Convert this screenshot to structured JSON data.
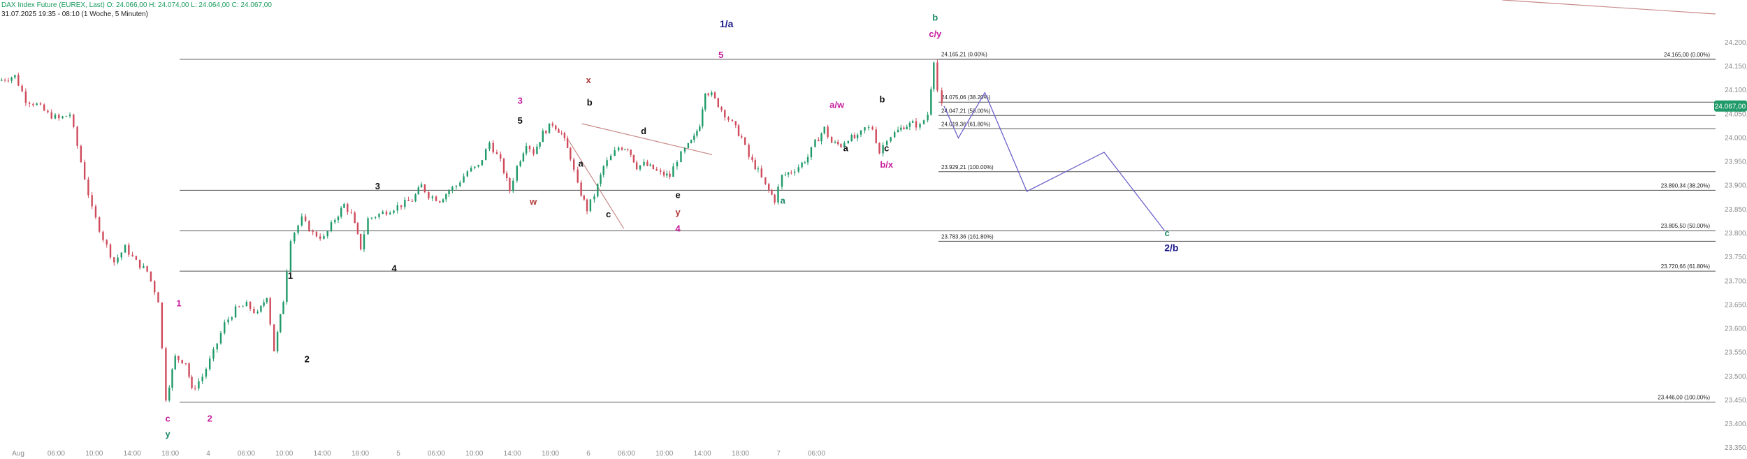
{
  "header": {
    "line1": "DAX Index Future (EUREX, Last)  O: 24.066,00  H: 24.074,00  L: 24.064,00  C: 24.067,00",
    "line2": "31.07.2025 19:35 - 08:10  (1 Woche, 5 Minuten)"
  },
  "colors": {
    "up": "#1f9a68",
    "down": "#cf4b5c",
    "level_line": "#555555",
    "trend": "#c98b8b",
    "projection": "#6c62c8",
    "price_badge": "#1f9a68"
  },
  "chart_data": {
    "type": "candlestick",
    "title": "",
    "ylim": [
      23340,
      24260
    ],
    "y_ticks": [
      "24.200,00",
      "24.150,00",
      "24.100,00",
      "24.050,00",
      "24.000,00",
      "23.950,00",
      "23.900,00",
      "23.850,00",
      "23.800,00",
      "23.750,00",
      "23.700,00",
      "23.650,00",
      "23.600,00",
      "23.550,00",
      "23.500,00",
      "23.450,00",
      "23.400,00",
      "23.350,00"
    ],
    "x_ticks": [
      "Aug",
      "06:00",
      "10:00",
      "14:00",
      "18:00",
      "4",
      "06:00",
      "10:00",
      "14:00",
      "18:00",
      "5",
      "06:00",
      "10:00",
      "14:00",
      "18:00",
      "6",
      "06:00",
      "10:00",
      "14:00",
      "18:00",
      "7",
      "06:00"
    ],
    "current_price": "24.067,00",
    "price_path": [
      [
        0,
        24120
      ],
      [
        1.5,
        24130
      ],
      [
        2.5,
        24080
      ],
      [
        3.5,
        24070
      ],
      [
        4.5,
        24050
      ],
      [
        5.5,
        24040
      ],
      [
        6.5,
        24050
      ],
      [
        7.5,
        23950
      ],
      [
        8.5,
        23850
      ],
      [
        9.5,
        23790
      ],
      [
        10.5,
        23740
      ],
      [
        11.5,
        23770
      ],
      [
        12.5,
        23740
      ],
      [
        13.5,
        23720
      ],
      [
        14.5,
        23660
      ],
      [
        15.2,
        23455
      ],
      [
        16,
        23540
      ],
      [
        17,
        23530
      ],
      [
        17.5,
        23470
      ],
      [
        18.5,
        23500
      ],
      [
        19.5,
        23550
      ],
      [
        20.5,
        23610
      ],
      [
        21.5,
        23640
      ],
      [
        22.5,
        23650
      ],
      [
        23.5,
        23630
      ],
      [
        24.3,
        23670
      ],
      [
        25,
        23555
      ],
      [
        25.8,
        23660
      ],
      [
        26.5,
        23790
      ],
      [
        27.5,
        23830
      ],
      [
        28.5,
        23800
      ],
      [
        29.5,
        23790
      ],
      [
        30.5,
        23830
      ],
      [
        31.3,
        23860
      ],
      [
        32,
        23840
      ],
      [
        32.8,
        23770
      ],
      [
        33.5,
        23830
      ],
      [
        34.5,
        23840
      ],
      [
        35.5,
        23850
      ],
      [
        36.5,
        23860
      ],
      [
        37.5,
        23870
      ],
      [
        38.3,
        23900
      ],
      [
        39,
        23880
      ],
      [
        40,
        23870
      ],
      [
        40.8,
        23890
      ],
      [
        41.5,
        23900
      ],
      [
        42.5,
        23930
      ],
      [
        43.5,
        23940
      ],
      [
        44.5,
        23990
      ],
      [
        45.5,
        23950
      ],
      [
        46.3,
        23890
      ],
      [
        47,
        23940
      ],
      [
        47.8,
        23990
      ],
      [
        48.5,
        23970
      ],
      [
        49.3,
        24010
      ],
      [
        50.2,
        24030
      ],
      [
        51,
        24010
      ],
      [
        51.8,
        23960
      ],
      [
        52.5,
        23900
      ],
      [
        53.3,
        23850
      ],
      [
        54,
        23880
      ],
      [
        54.8,
        23940
      ],
      [
        55.5,
        23960
      ],
      [
        56.2,
        23980
      ],
      [
        57,
        23980
      ],
      [
        57.8,
        23940
      ],
      [
        58.5,
        23945
      ],
      [
        59.3,
        23935
      ],
      [
        60,
        23925
      ],
      [
        60.8,
        23920
      ],
      [
        61.5,
        23955
      ],
      [
        62.2,
        23975
      ],
      [
        63,
        24000
      ],
      [
        63.5,
        24030
      ],
      [
        64,
        24100
      ],
      [
        64.6,
        24090
      ],
      [
        65.2,
        24070
      ],
      [
        65.8,
        24050
      ],
      [
        66.5,
        24030
      ],
      [
        67.3,
        24000
      ],
      [
        68,
        23960
      ],
      [
        68.8,
        23930
      ],
      [
        69.5,
        23900
      ],
      [
        70.3,
        23870
      ],
      [
        71,
        23920
      ],
      [
        71.8,
        23930
      ],
      [
        72.5,
        23940
      ],
      [
        73.3,
        23960
      ],
      [
        74,
        23990
      ],
      [
        74.8,
        24020
      ],
      [
        75.5,
        23990
      ],
      [
        76.3,
        23985
      ],
      [
        77,
        24000
      ],
      [
        77.8,
        24000
      ],
      [
        78.5,
        24020
      ],
      [
        79.2,
        24020
      ],
      [
        79.8,
        23970
      ],
      [
        80.5,
        24000
      ],
      [
        81.2,
        24010
      ],
      [
        82,
        24025
      ],
      [
        82.8,
        24030
      ],
      [
        83.5,
        24025
      ],
      [
        84.2,
        24050
      ],
      [
        84.7,
        24165
      ],
      [
        85.1,
        24100
      ],
      [
        85.5,
        24067
      ]
    ],
    "levels": [
      {
        "price": 24165.0,
        "label": "24.165,00 (0.00%)",
        "x0": 15.2,
        "x1": 120,
        "side": "right"
      },
      {
        "price": 23890.34,
        "label": "23.890,34 (38.20%)",
        "x0": 15.2,
        "x1": 120,
        "side": "right"
      },
      {
        "price": 23805.5,
        "label": "23.805,50 (50.00%)",
        "x0": 15.2,
        "x1": 120,
        "side": "right"
      },
      {
        "price": 23720.66,
        "label": "23.720,66 (61.80%)",
        "x0": 15.2,
        "x1": 120,
        "side": "right"
      },
      {
        "price": 23446.0,
        "label": "23.446,00 (100.00%)",
        "x0": 15.2,
        "x1": 120,
        "side": "right"
      },
      {
        "price": 24165.21,
        "label": "24.165,21 (0.00%)",
        "x0": 85,
        "x1": 120,
        "side": "left"
      },
      {
        "price": 24075.06,
        "label": "24.075,06 (38.20%)",
        "x0": 85,
        "x1": 120,
        "side": "left"
      },
      {
        "price": 24047.21,
        "label": "24.047,21 (50.00%)",
        "x0": 85,
        "x1": 120,
        "side": "left"
      },
      {
        "price": 24019.36,
        "label": "24.019,36 (61.80%)",
        "x0": 85,
        "x1": 120,
        "side": "left"
      },
      {
        "price": 23929.21,
        "label": "23.929,21 (100.00%)",
        "x0": 85,
        "x1": 120,
        "side": "left"
      },
      {
        "price": 23783.36,
        "label": "23.783,36 (161.80%)",
        "x0": 85,
        "x1": 120,
        "side": "left"
      }
    ],
    "trendlines": [
      {
        "from": [
          52.7,
          24030
        ],
        "to": [
          64.5,
          23965
        ]
      },
      {
        "from": [
          51.5,
          23995
        ],
        "to": [
          56.5,
          23810
        ]
      }
    ],
    "projection": [
      [
        85.5,
        24067
      ],
      [
        86.8,
        24000
      ],
      [
        89.2,
        24095
      ],
      [
        93,
        23888
      ],
      [
        100,
        23970
      ],
      [
        105.5,
        23805
      ]
    ],
    "wave_labels": [
      {
        "text": "1/a",
        "x": 65.8,
        "price": 24232,
        "color": "#1d1b8c",
        "size": 14
      },
      {
        "text": "5",
        "x": 65.3,
        "price": 24168,
        "color": "#c81e9c",
        "size": 13
      },
      {
        "text": "b",
        "x": 84.7,
        "price": 24246,
        "color": "#1e8a6a",
        "size": 13
      },
      {
        "text": "c/y",
        "x": 84.7,
        "price": 24212,
        "color": "#c81e9c",
        "size": 13
      },
      {
        "text": "x",
        "x": 53.3,
        "price": 24115,
        "color": "#b23a3a",
        "size": 13
      },
      {
        "text": "3",
        "x": 47.1,
        "price": 24072,
        "color": "#c81e9c",
        "size": 13
      },
      {
        "text": "b",
        "x": 53.4,
        "price": 24068,
        "color": "#111111",
        "size": 13
      },
      {
        "text": "5",
        "x": 47.1,
        "price": 24030,
        "color": "#111111",
        "size": 13
      },
      {
        "text": "d",
        "x": 58.3,
        "price": 24008,
        "color": "#111111",
        "size": 13
      },
      {
        "text": "a/w",
        "x": 75.8,
        "price": 24063,
        "color": "#c81e9c",
        "size": 13
      },
      {
        "text": "b",
        "x": 79.9,
        "price": 24075,
        "color": "#111111",
        "size": 13
      },
      {
        "text": "a",
        "x": 76.6,
        "price": 23972,
        "color": "#111111",
        "size": 13
      },
      {
        "text": "c",
        "x": 80.3,
        "price": 23972,
        "color": "#111111",
        "size": 13
      },
      {
        "text": "b/x",
        "x": 80.3,
        "price": 23938,
        "color": "#c81e9c",
        "size": 13
      },
      {
        "text": "a",
        "x": 52.6,
        "price": 23940,
        "color": "#111111",
        "size": 13
      },
      {
        "text": "3",
        "x": 34.2,
        "price": 23892,
        "color": "#111111",
        "size": 13
      },
      {
        "text": "w",
        "x": 48.3,
        "price": 23860,
        "color": "#b23a3a",
        "size": 13
      },
      {
        "text": "e",
        "x": 61.4,
        "price": 23874,
        "color": "#111111",
        "size": 13
      },
      {
        "text": "a",
        "x": 70.9,
        "price": 23862,
        "color": "#1e8a6a",
        "size": 13
      },
      {
        "text": "c",
        "x": 55.1,
        "price": 23834,
        "color": "#111111",
        "size": 13
      },
      {
        "text": "y",
        "x": 61.4,
        "price": 23838,
        "color": "#b23a3a",
        "size": 13
      },
      {
        "text": "4",
        "x": 61.4,
        "price": 23804,
        "color": "#c81e9c",
        "size": 13
      },
      {
        "text": "c",
        "x": 105.7,
        "price": 23794,
        "color": "#1e8a6a",
        "size": 13
      },
      {
        "text": "2/b",
        "x": 106.1,
        "price": 23763,
        "color": "#1d1b8c",
        "size": 14
      },
      {
        "text": "4",
        "x": 35.7,
        "price": 23720,
        "color": "#111111",
        "size": 13
      },
      {
        "text": "1",
        "x": 26.3,
        "price": 23705,
        "color": "#111111",
        "size": 13
      },
      {
        "text": "1",
        "x": 16.2,
        "price": 23647,
        "color": "#c81e9c",
        "size": 13
      },
      {
        "text": "2",
        "x": 27.8,
        "price": 23530,
        "color": "#111111",
        "size": 13
      },
      {
        "text": "2",
        "x": 19.0,
        "price": 23405,
        "color": "#c81e9c",
        "size": 13
      },
      {
        "text": "c",
        "x": 15.2,
        "price": 23405,
        "color": "#c81e9c",
        "size": 13
      },
      {
        "text": "y",
        "x": 15.2,
        "price": 23373,
        "color": "#1e8a6a",
        "size": 13
      }
    ]
  }
}
